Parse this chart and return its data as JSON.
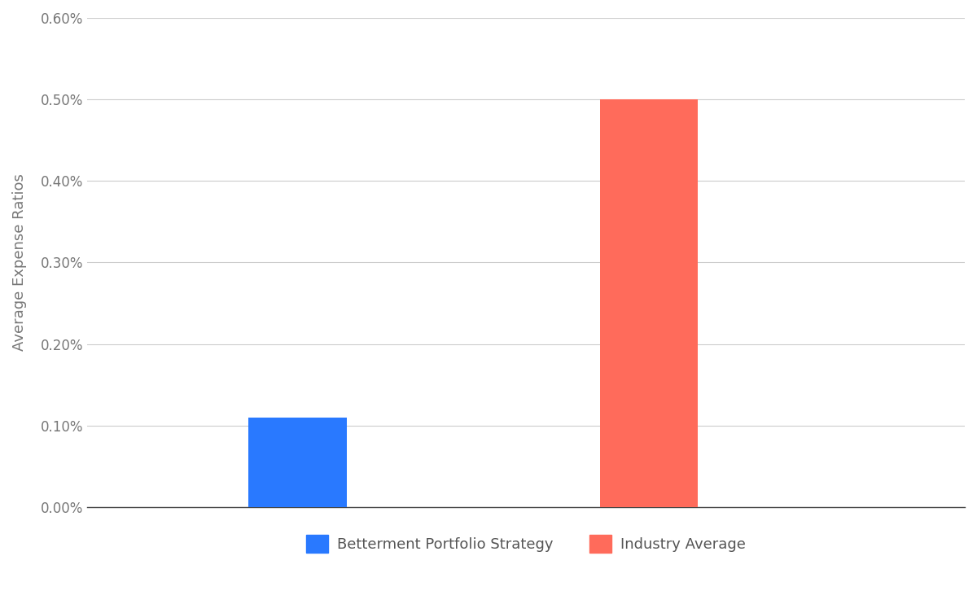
{
  "categories": [
    "Betterment Portfolio Strategy",
    "Industry Average"
  ],
  "values": [
    0.0011,
    0.005
  ],
  "bar_colors": [
    "#2979FF",
    "#FF6B5B"
  ],
  "ylabel": "Average Expense Ratios",
  "ylim": [
    0,
    0.006
  ],
  "yticks": [
    0.0,
    0.001,
    0.002,
    0.003,
    0.004,
    0.005,
    0.006
  ],
  "ytick_labels": [
    "0.00%",
    "0.10%",
    "0.20%",
    "0.30%",
    "0.40%",
    "0.50%",
    "0.60%"
  ],
  "legend_labels": [
    "Betterment Portfolio Strategy",
    "Industry Average"
  ],
  "legend_colors": [
    "#2979FF",
    "#FF6B5B"
  ],
  "background_color": "#FFFFFF",
  "grid_color": "#CCCCCC",
  "bar_width": 0.28,
  "bar_positions": [
    1,
    2
  ],
  "xlim": [
    0.4,
    2.9
  ],
  "ylabel_fontsize": 13,
  "tick_fontsize": 12,
  "legend_fontsize": 13,
  "ylabel_color": "#777777",
  "ytick_color": "#777777"
}
